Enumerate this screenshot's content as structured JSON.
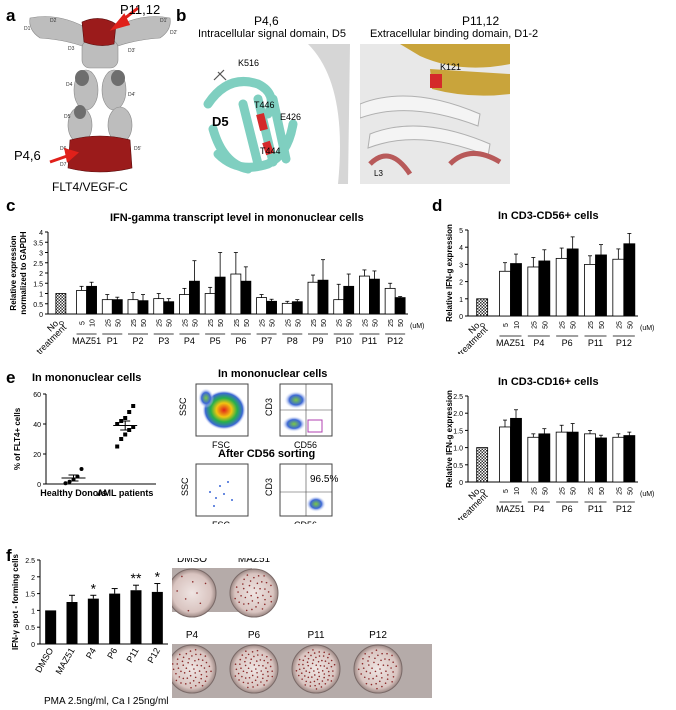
{
  "panel_labels": {
    "a": "a",
    "b": "b",
    "c": "c",
    "d": "d",
    "e": "e",
    "f": "f"
  },
  "panel_a": {
    "caption": "FLT4/VEGF-C",
    "arrow_top": "P11,12",
    "arrow_bottom": "P4,6",
    "domain_labels": [
      "D1",
      "D2",
      "D3",
      "D4",
      "D5",
      "D6",
      "D7",
      "D1'",
      "D2'",
      "D3'",
      "D4'",
      "D5'"
    ],
    "colors": {
      "protein": "#bdbdbd",
      "highlight": "#9b1b1b",
      "arrow": "#e0201a"
    }
  },
  "panel_b": {
    "left_title": "P4,6",
    "left_subtitle": "Intracellular signal domain, D5",
    "left_labels": [
      "K516",
      "T446",
      "E426",
      "T444",
      "D5"
    ],
    "right_title": "P11,12",
    "right_subtitle": "Extracellular binding domain, D1-2",
    "right_labels": [
      "K121",
      "L3"
    ],
    "colors": {
      "teal": "#7fcfc0",
      "gold": "#c9a43b",
      "red": "#d42a2a",
      "grey": "#d6d6d6"
    }
  },
  "chart_data": [
    {
      "id": "c",
      "type": "bar",
      "title": "IFN-gamma transcript level in mononuclear cells",
      "ylabel": "Relative expression normalized to GAPDH",
      "ylim": [
        0,
        4
      ],
      "yticks": [
        "0",
        "0.5",
        "1",
        "1.5",
        "2",
        "2.5",
        "3",
        "3.5",
        "4"
      ],
      "unit_label": "(uM)",
      "no_treatment_label": "No treatment",
      "control": {
        "value": 1.0
      },
      "groups": [
        {
          "name": "MAZ51",
          "doses": [
            "5",
            "10"
          ],
          "values": [
            1.15,
            1.35
          ],
          "err": [
            0.2,
            0.2
          ]
        },
        {
          "name": "P1",
          "doses": [
            "25",
            "50"
          ],
          "values": [
            0.7,
            0.7
          ],
          "err": [
            0.25,
            0.12
          ]
        },
        {
          "name": "P2",
          "doses": [
            "25",
            "50"
          ],
          "values": [
            0.7,
            0.65
          ],
          "err": [
            0.35,
            0.3
          ]
        },
        {
          "name": "P3",
          "doses": [
            "25",
            "50"
          ],
          "values": [
            0.75,
            0.6
          ],
          "err": [
            0.25,
            0.15
          ]
        },
        {
          "name": "P4",
          "doses": [
            "25",
            "50"
          ],
          "values": [
            0.95,
            1.6
          ],
          "err": [
            0.3,
            1.0
          ]
        },
        {
          "name": "P5",
          "doses": [
            "25",
            "50"
          ],
          "values": [
            1.0,
            1.8
          ],
          "err": [
            0.3,
            1.2
          ]
        },
        {
          "name": "P6",
          "doses": [
            "25",
            "50"
          ],
          "values": [
            1.95,
            1.6
          ],
          "err": [
            1.05,
            0.7
          ]
        },
        {
          "name": "P7",
          "doses": [
            "25",
            "50"
          ],
          "values": [
            0.8,
            0.62
          ],
          "err": [
            0.15,
            0.1
          ]
        },
        {
          "name": "P8",
          "doses": [
            "25",
            "50"
          ],
          "values": [
            0.52,
            0.6
          ],
          "err": [
            0.1,
            0.1
          ]
        },
        {
          "name": "P9",
          "doses": [
            "25",
            "50"
          ],
          "values": [
            1.55,
            1.65
          ],
          "err": [
            0.35,
            1.0
          ]
        },
        {
          "name": "P10",
          "doses": [
            "25",
            "50"
          ],
          "values": [
            0.7,
            1.35
          ],
          "err": [
            0.75,
            0.6
          ]
        },
        {
          "name": "P11",
          "doses": [
            "25",
            "50"
          ],
          "values": [
            1.85,
            1.7
          ],
          "err": [
            0.3,
            0.4
          ]
        },
        {
          "name": "P12",
          "doses": [
            "25",
            "50"
          ],
          "values": [
            1.25,
            0.8
          ],
          "err": [
            0.25,
            0.05
          ]
        }
      ]
    },
    {
      "id": "d1",
      "type": "bar",
      "title": "In CD3-CD56+ cells",
      "ylabel": "Relative IFN-g expression",
      "ylim": [
        0,
        5
      ],
      "unit_label": "(uM)",
      "no_treatment_label": "No treatment",
      "control": {
        "value": 1.0
      },
      "groups": [
        {
          "name": "MAZ51",
          "doses": [
            "5",
            "10"
          ],
          "values": [
            2.6,
            3.05
          ],
          "err": [
            0.5,
            0.55
          ]
        },
        {
          "name": "P4",
          "doses": [
            "25",
            "50"
          ],
          "values": [
            2.85,
            3.2
          ],
          "err": [
            0.55,
            0.65
          ]
        },
        {
          "name": "P6",
          "doses": [
            "25",
            "50"
          ],
          "values": [
            3.35,
            3.9
          ],
          "err": [
            0.6,
            0.7
          ]
        },
        {
          "name": "P11",
          "doses": [
            "25",
            "50"
          ],
          "values": [
            3.0,
            3.55
          ],
          "err": [
            0.5,
            0.6
          ]
        },
        {
          "name": "P12",
          "doses": [
            "25",
            "50"
          ],
          "values": [
            3.3,
            4.2
          ],
          "err": [
            0.6,
            0.6
          ]
        }
      ]
    },
    {
      "id": "d2",
      "type": "bar",
      "title": "In CD3-CD16+ cells",
      "ylabel": "Relative IFN-g expression",
      "ylim": [
        0,
        2.5
      ],
      "yticks": [
        "0",
        "0.5",
        "1.0",
        "1.5",
        "2.0",
        "2.5"
      ],
      "unit_label": "(uM)",
      "no_treatment_label": "No treatment",
      "control": {
        "value": 1.0
      },
      "groups": [
        {
          "name": "MAZ51",
          "doses": [
            "5",
            "10"
          ],
          "values": [
            1.6,
            1.85
          ],
          "err": [
            0.2,
            0.25
          ]
        },
        {
          "name": "P4",
          "doses": [
            "25",
            "50"
          ],
          "values": [
            1.3,
            1.4
          ],
          "err": [
            0.1,
            0.15
          ]
        },
        {
          "name": "P6",
          "doses": [
            "25",
            "50"
          ],
          "values": [
            1.45,
            1.45
          ],
          "err": [
            0.2,
            0.25
          ]
        },
        {
          "name": "P11",
          "doses": [
            "25",
            "50"
          ],
          "values": [
            1.4,
            1.28
          ],
          "err": [
            0.1,
            0.08
          ]
        },
        {
          "name": "P12",
          "doses": [
            "25",
            "50"
          ],
          "values": [
            1.3,
            1.35
          ],
          "err": [
            0.1,
            0.1
          ]
        }
      ]
    },
    {
      "id": "e",
      "type": "scatter",
      "title": "In mononuclear cells",
      "ylabel": "% of FLT4+ cells",
      "ylim": [
        0,
        60
      ],
      "yticks": [
        "0",
        "20",
        "40",
        "60"
      ],
      "categories": [
        "Healthy Donors",
        "AML patients"
      ],
      "series": [
        {
          "name": "Healthy Donors",
          "values": [
            0.5,
            1.5,
            3,
            5,
            10
          ],
          "mean": 4,
          "sem": 2
        },
        {
          "name": "AML patients",
          "values": [
            25,
            30,
            33,
            36,
            38,
            40,
            42,
            44,
            48,
            52
          ],
          "mean": 39,
          "sem": 3
        }
      ]
    },
    {
      "id": "f",
      "type": "bar",
      "ylabel": "IFN-γ spot - forming cells",
      "ylim": [
        0,
        2.5
      ],
      "yticks": [
        "0",
        "0.5",
        "1",
        "1.5",
        "2",
        "2.5"
      ],
      "categories": [
        "DMSO",
        "MAZ51",
        "P4",
        "P6",
        "P11",
        "P12"
      ],
      "values": [
        1.0,
        1.25,
        1.35,
        1.5,
        1.6,
        1.55
      ],
      "err": [
        0,
        0.2,
        0.1,
        0.15,
        0.15,
        0.25
      ],
      "significance": [
        "",
        "",
        "*",
        "",
        "**",
        "*"
      ],
      "footer": "PMA 2.5ng/ml, Ca I 25ng/ml"
    }
  ],
  "panel_e": {
    "flow_title_1": "In mononuclear cells",
    "flow_title_2": "After CD56 sorting",
    "axis_ssc": "SSC",
    "axis_fsc": "FSC",
    "axis_cd3": "CD3",
    "axis_cd56": "CD56",
    "sorted_percent": "96.5%"
  },
  "panel_f": {
    "wells_top": [
      "DMSO",
      "MAZ51"
    ],
    "wells_bottom": [
      "P4",
      "P6",
      "P11",
      "P12"
    ]
  }
}
